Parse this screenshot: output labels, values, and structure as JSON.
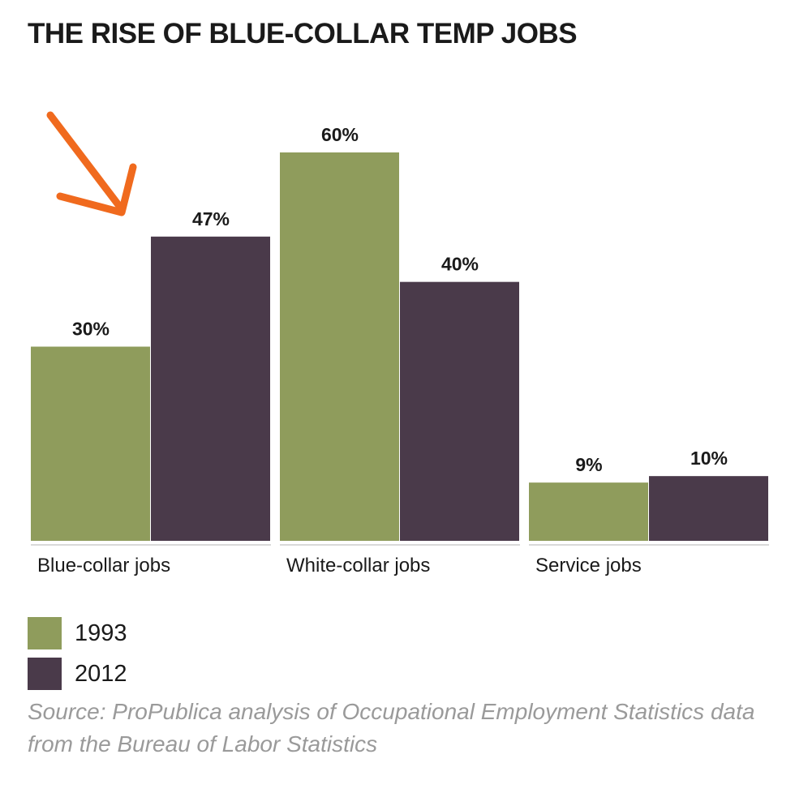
{
  "chart_data": {
    "type": "bar",
    "title": "THE RISE OF BLUE-COLLAR TEMP JOBS",
    "categories": [
      "Blue-collar jobs",
      "White-collar jobs",
      "Service jobs"
    ],
    "series": [
      {
        "name": "1993",
        "values": [
          30,
          60,
          9
        ],
        "labels": [
          "30%",
          "60%",
          "9%"
        ],
        "color": "#8f9c5c"
      },
      {
        "name": "2012",
        "values": [
          47,
          40,
          10
        ],
        "labels": [
          "47%",
          "40%",
          "10%"
        ],
        "color": "#4a3a4a"
      }
    ],
    "unit": "%",
    "ylim": [
      0,
      60
    ],
    "grid": false,
    "legend_position": "bottom-left",
    "xlabel": "",
    "ylabel": "",
    "source": "Source: ProPublica analysis of Occupational Employment Statistics data from the Bureau of Labor Statistics",
    "annotation": {
      "type": "arrow",
      "color": "#f06a1e",
      "points_to": "Blue-collar jobs 2012"
    }
  }
}
